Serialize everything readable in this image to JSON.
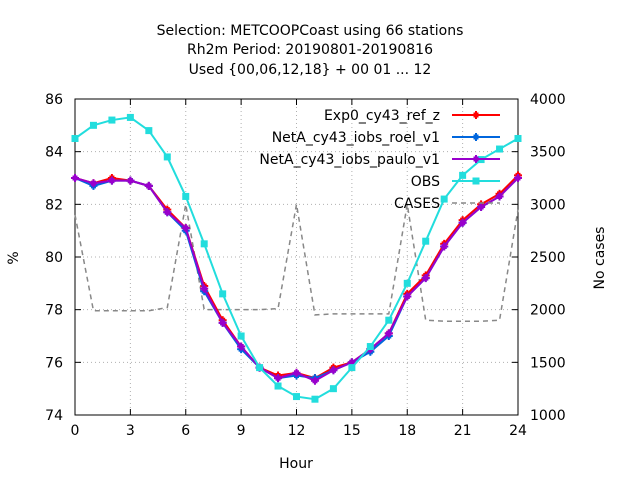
{
  "chart_data": {
    "type": "line",
    "title_lines": [
      "Selection: METCOOPCoast using    66 stations",
      "Rh2m   Period: 20190801-20190816",
      "Used {00,06,12,18} + 00 01 ... 12"
    ],
    "xlabel": "Hour",
    "ylabel": "%",
    "y2label": "No cases",
    "xlim": [
      0,
      24
    ],
    "ylim": [
      74,
      86
    ],
    "y2lim": [
      1000,
      4000
    ],
    "x_ticks": [
      0,
      3,
      6,
      9,
      12,
      15,
      18,
      21,
      24
    ],
    "y_ticks": [
      74,
      76,
      78,
      80,
      82,
      84,
      86
    ],
    "y2_ticks": [
      1000,
      1500,
      2000,
      2500,
      3000,
      3500,
      4000
    ],
    "grid": true,
    "legend_position": "top-right",
    "x": [
      0,
      1,
      2,
      3,
      4,
      5,
      6,
      7,
      8,
      9,
      10,
      11,
      12,
      13,
      14,
      15,
      16,
      17,
      18,
      19,
      20,
      21,
      22,
      23,
      24
    ],
    "series": [
      {
        "name": "Exp0_cy43_ref_z",
        "color": "#ff0000",
        "marker": "plus",
        "axis": "y",
        "values": [
          83.0,
          82.8,
          83.0,
          82.9,
          82.7,
          81.8,
          81.1,
          78.9,
          77.6,
          76.6,
          75.8,
          75.5,
          75.6,
          75.4,
          75.8,
          76.0,
          76.5,
          77.1,
          78.6,
          79.3,
          80.5,
          81.4,
          82.0,
          82.4,
          83.1
        ]
      },
      {
        "name": "NetA_cy43_iobs_roel_v1",
        "color": "#0066dd",
        "marker": "plus",
        "axis": "y",
        "values": [
          83.0,
          82.7,
          82.9,
          82.9,
          82.7,
          81.7,
          81.0,
          78.7,
          77.5,
          76.5,
          75.8,
          75.4,
          75.5,
          75.4,
          75.7,
          76.0,
          76.4,
          77.0,
          78.5,
          79.2,
          80.4,
          81.3,
          81.9,
          82.3,
          83.0
        ]
      },
      {
        "name": "NetA_cy43_iobs_paulo_v1",
        "color": "#9900cc",
        "marker": "plus",
        "axis": "y",
        "values": [
          83.0,
          82.8,
          82.9,
          82.9,
          82.7,
          81.7,
          81.1,
          78.8,
          77.5,
          76.6,
          75.8,
          75.4,
          75.6,
          75.3,
          75.7,
          76.0,
          76.5,
          77.1,
          78.5,
          79.2,
          80.4,
          81.3,
          81.9,
          82.3,
          83.0
        ]
      },
      {
        "name": "OBS",
        "color": "#22dddd",
        "marker": "square",
        "axis": "y",
        "values": [
          84.5,
          85.0,
          85.2,
          85.3,
          84.8,
          83.8,
          82.3,
          80.5,
          78.6,
          77.0,
          75.8,
          75.1,
          74.7,
          74.6,
          75.0,
          75.8,
          76.6,
          77.6,
          79.0,
          80.6,
          82.2,
          83.1,
          83.7,
          84.1,
          84.5
        ]
      },
      {
        "name": "CASES",
        "color": "#888888",
        "marker": "none",
        "dashed": true,
        "axis": "y2",
        "values": [
          2900,
          1990,
          1990,
          1990,
          1990,
          2020,
          3000,
          2000,
          2000,
          2000,
          2000,
          2010,
          3000,
          1950,
          1960,
          1960,
          1960,
          1960,
          3000,
          1900,
          1890,
          1890,
          1890,
          1900,
          2950
        ]
      }
    ]
  }
}
